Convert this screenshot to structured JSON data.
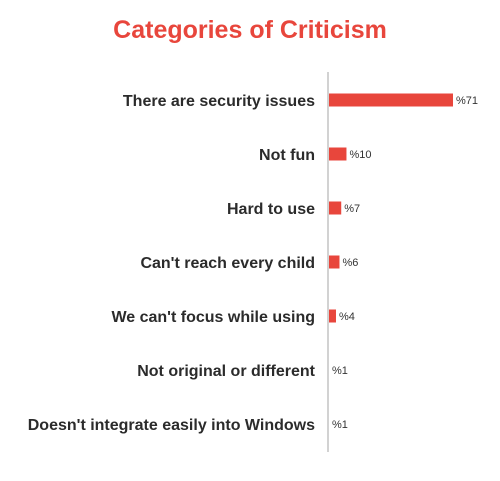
{
  "chart_data": {
    "type": "bar",
    "orientation": "horizontal",
    "title": "Categories of Criticism",
    "categories": [
      "There are security issues",
      "Not fun",
      "Hard to use",
      "Can't reach every child",
      "We can't focus while using",
      "Not original or different",
      "Doesn't integrate easily into Windows"
    ],
    "values": [
      71,
      10,
      7,
      6,
      4,
      1,
      1
    ],
    "value_labels": [
      "%71",
      "%10",
      "%7",
      "%6",
      "%4",
      "%1",
      "%1"
    ],
    "xlim": [
      0,
      71
    ],
    "bar_color": "#e8463c",
    "title_color": "#e8463c",
    "grid": false
  }
}
